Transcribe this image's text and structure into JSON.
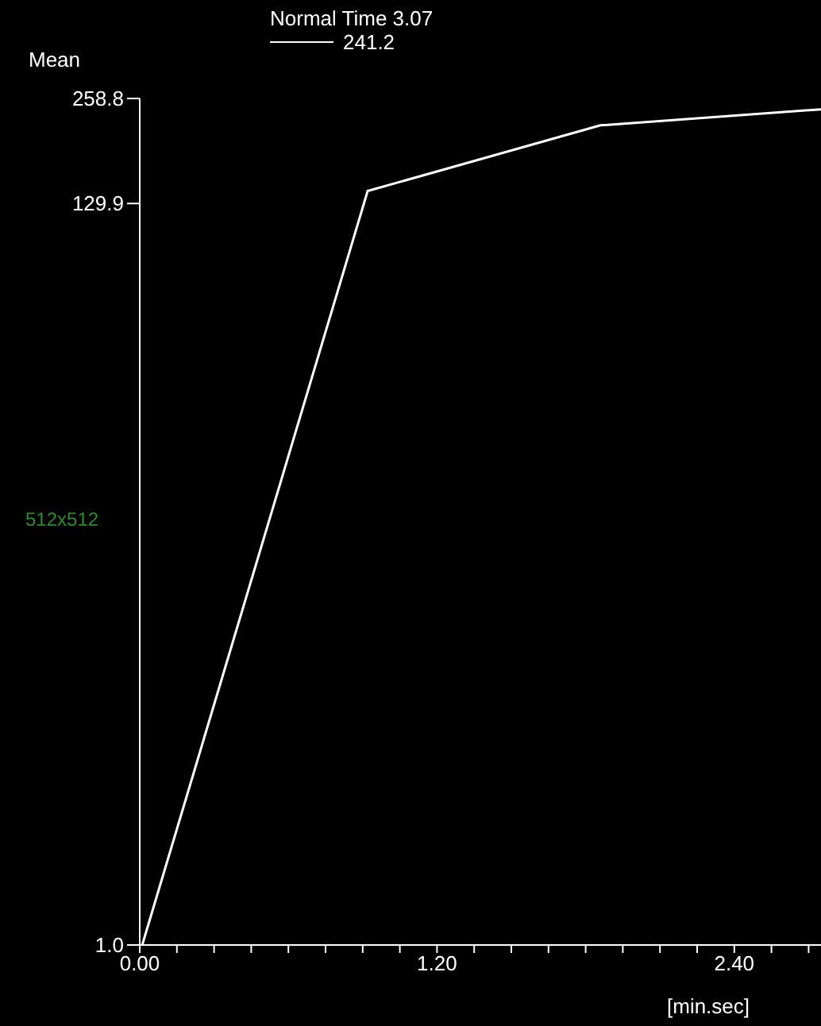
{
  "chart_data": {
    "type": "line",
    "ylabel": "Mean",
    "xlabel": "[min.sec]",
    "legend_title": "Normal Time 3.07",
    "annotations": [
      "512x512"
    ],
    "x": [
      0.01,
      0.92,
      1.86,
      2.75
    ],
    "series": [
      {
        "name": "241.2",
        "color": "#ffffff",
        "values": [
          1.0,
          141,
          217,
          241
        ]
      }
    ],
    "log": "y",
    "legend": "top",
    "marker": "none",
    "line_style": "solid",
    "grid": false,
    "xlim": [
      0,
      2.75
    ],
    "xticks": [
      {
        "value": 0,
        "label": "0.00"
      },
      {
        "value": 0.15,
        "label": null
      },
      {
        "value": 0.3,
        "label": null
      },
      {
        "value": 0.45,
        "label": null
      },
      {
        "value": 0.6,
        "label": null
      },
      {
        "value": 0.75,
        "label": null
      },
      {
        "value": 0.9,
        "label": null
      },
      {
        "value": 1.05,
        "label": null
      },
      {
        "value": 1.2,
        "label": "1.20"
      },
      {
        "value": 1.35,
        "label": null
      },
      {
        "value": 1.5,
        "label": null
      },
      {
        "value": 1.65,
        "label": null
      },
      {
        "value": 1.8,
        "label": null
      },
      {
        "value": 1.95,
        "label": null
      },
      {
        "value": 2.1,
        "label": null
      },
      {
        "value": 2.25,
        "label": null
      },
      {
        "value": 2.4,
        "label": "2.40"
      },
      {
        "value": 2.55,
        "label": null
      },
      {
        "value": 2.7,
        "label": null
      }
    ],
    "ylim": [
      1.0,
      258.8
    ],
    "yticks": [
      {
        "value": 1.0,
        "label": "1.0"
      },
      {
        "value": 129.9,
        "label": "129.9"
      },
      {
        "value": 258.8,
        "label": "258.8"
      }
    ]
  }
}
